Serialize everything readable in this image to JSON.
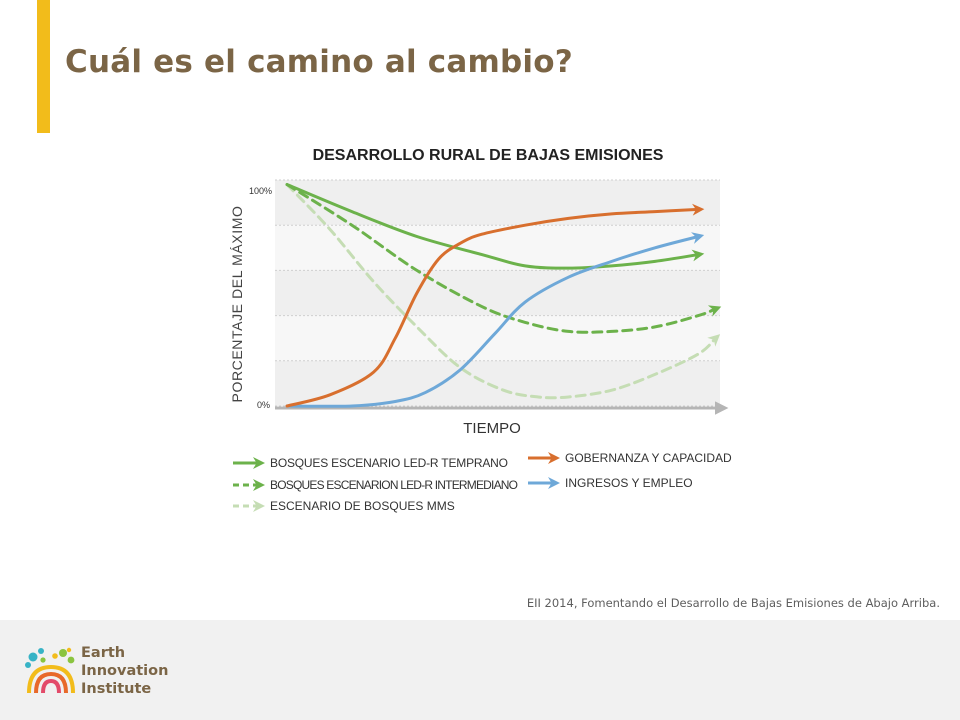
{
  "slide": {
    "title": "Cuál es el camino al cambio?",
    "caption": "EII 2014, Fomentando el Desarrollo de Bajas Emisiones de Abajo Arriba.",
    "accent_color": "#f2bc1b",
    "title_color": "#7b6546"
  },
  "footer": {
    "logo_lines": [
      "Earth",
      "Innovation",
      "Institute"
    ]
  },
  "chart_data": {
    "type": "line",
    "title": "DESARROLLO RURAL DE BAJAS EMISIONES",
    "xlabel": "TIEMPO",
    "ylabel": "PORCENTAJE DEL MÁXIMO",
    "y_tick_labels": [
      "100%",
      "0%"
    ],
    "ylim": [
      0,
      100
    ],
    "xlim": [
      0,
      100
    ],
    "grid": true,
    "legend_position": "bottom",
    "series": [
      {
        "name": "BOSQUES ESCENARIO LED-R TEMPRANO",
        "color": "#6cb24b",
        "style": "solid",
        "x": [
          0,
          15,
          30,
          45,
          55,
          65,
          75,
          85,
          95
        ],
        "y": [
          98,
          86,
          75,
          67,
          62,
          61,
          62,
          64,
          67
        ]
      },
      {
        "name": "BOSQUES ESCENARION LED-R INTERMEDIANO",
        "color": "#6cb24b",
        "style": "dashed",
        "x": [
          0,
          15,
          30,
          45,
          55,
          65,
          75,
          85,
          95,
          99
        ],
        "y": [
          98,
          80,
          60,
          44,
          37,
          33,
          33,
          35,
          40,
          43
        ]
      },
      {
        "name": "ESCENARIO DE BOSQUES MMS",
        "color": "#c5ddb4",
        "style": "dashed",
        "x": [
          0,
          10,
          20,
          30,
          40,
          50,
          58,
          65,
          75,
          85,
          95,
          99
        ],
        "y": [
          98,
          78,
          55,
          35,
          17,
          7,
          4,
          4,
          7,
          14,
          23,
          30
        ]
      },
      {
        "name": "GOBERNANZA Y CAPACIDAD",
        "color": "#d86f2e",
        "style": "solid",
        "x": [
          0,
          10,
          20,
          25,
          30,
          35,
          40,
          45,
          55,
          65,
          75,
          85,
          95
        ],
        "y": [
          0,
          5,
          15,
          30,
          50,
          65,
          72,
          76,
          80,
          83,
          85,
          86,
          87
        ]
      },
      {
        "name": "INGRESOS Y EMPLEO",
        "color": "#6ea8d8",
        "style": "solid",
        "x": [
          0,
          15,
          25,
          32,
          40,
          48,
          55,
          65,
          75,
          85,
          95
        ],
        "y": [
          0,
          0,
          2,
          6,
          16,
          32,
          46,
          57,
          64,
          70,
          75
        ]
      }
    ]
  }
}
